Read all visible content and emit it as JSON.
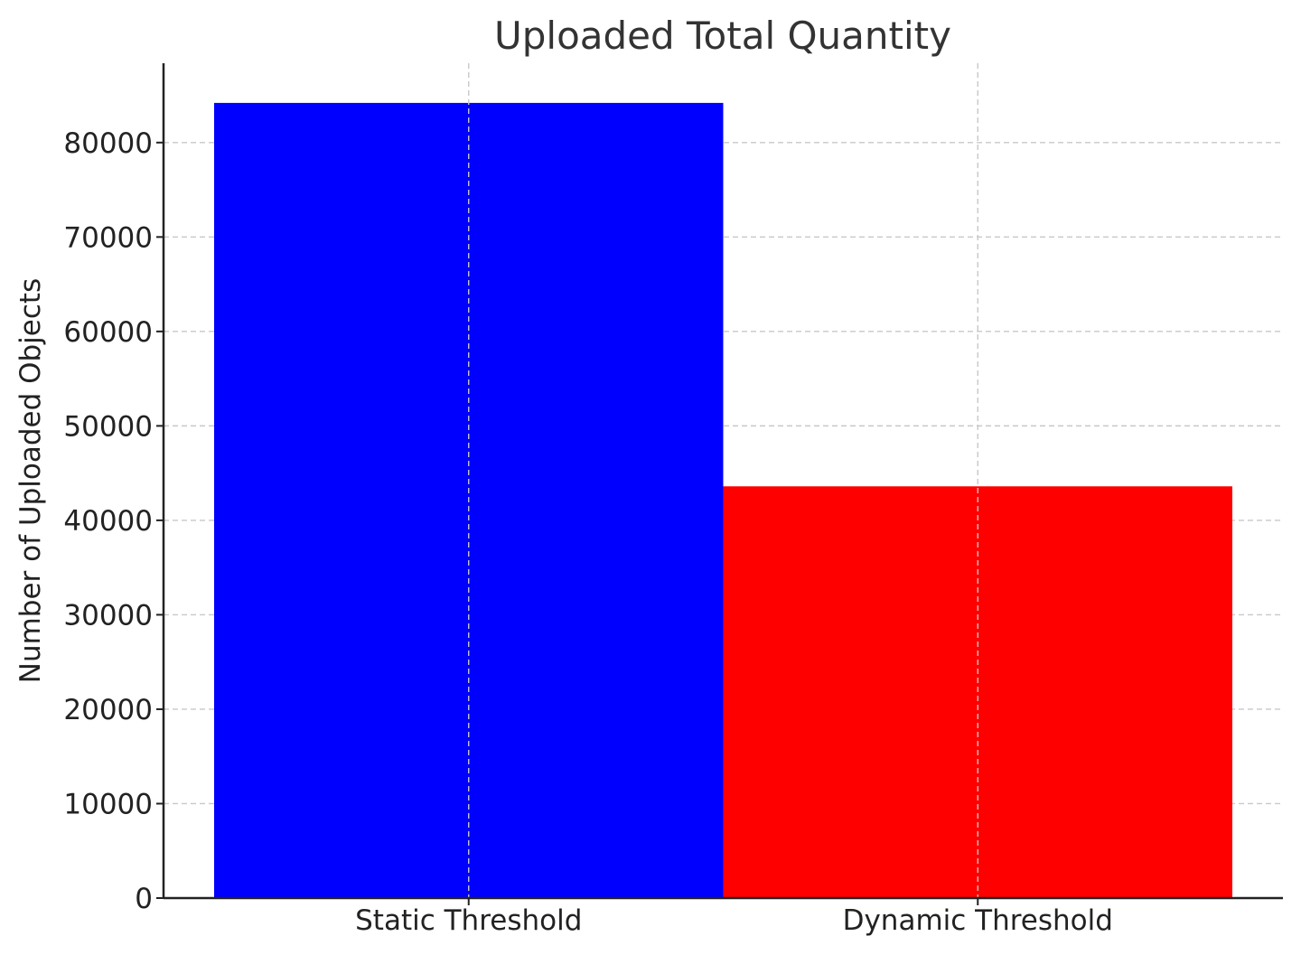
{
  "chart_data": {
    "type": "bar",
    "title": "Uploaded Total Quantity",
    "xlabel": "",
    "ylabel": "Number of Uploaded Objects",
    "categories": [
      "Static Threshold",
      "Dynamic Threshold"
    ],
    "values": [
      84200,
      43600
    ],
    "colors": [
      "#0000ff",
      "#ff0000"
    ],
    "ylim": [
      0,
      88400
    ],
    "yticks": [
      0,
      10000,
      20000,
      30000,
      40000,
      50000,
      60000,
      70000,
      80000
    ],
    "ytick_labels": [
      "0",
      "10000",
      "20000",
      "30000",
      "40000",
      "50000",
      "60000",
      "70000",
      "80000"
    ],
    "grid": true,
    "legend": "none"
  }
}
